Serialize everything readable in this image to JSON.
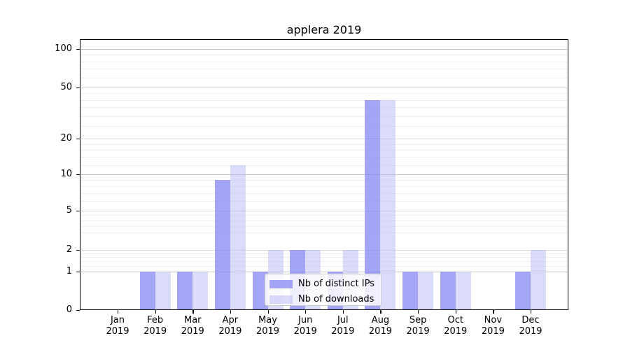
{
  "chart_data": {
    "type": "bar",
    "title": "applera 2019",
    "categories": [
      "Jan 2019",
      "Feb 2019",
      "Mar 2019",
      "Apr 2019",
      "May 2019",
      "Jun 2019",
      "Jul 2019",
      "Aug 2019",
      "Sep 2019",
      "Oct 2019",
      "Nov 2019",
      "Dec 2019"
    ],
    "series": [
      {
        "name": "Nb of distinct IPs",
        "color": "#a8a8f6",
        "fill_rgba": "rgba(132,132,243,0.73)",
        "values": [
          0,
          1,
          1,
          9,
          1,
          2,
          1,
          40,
          1,
          1,
          0,
          1
        ]
      },
      {
        "name": "Nb of downloads",
        "color": "#dcdcfa",
        "fill_rgba": "rgba(186,186,246,0.52)",
        "values": [
          0,
          1,
          1,
          12,
          2,
          2,
          2,
          40,
          1,
          1,
          0,
          2
        ]
      }
    ],
    "xlabel": "",
    "ylabel": "",
    "yaxis": {
      "scale": "log-like above 1 with linear 0-1 segment",
      "tick_labels": [
        "100",
        "50",
        "20",
        "10",
        "5",
        "2",
        "1",
        "0"
      ],
      "tick_values": [
        100,
        50,
        20,
        10,
        5,
        2,
        1,
        0
      ],
      "ylim": [
        0,
        110
      ]
    },
    "grid": "horizontal major and minor gridlines",
    "legend": {
      "position": "inside lower center",
      "entries": [
        "Nb of distinct IPs",
        "Nb of downloads"
      ]
    }
  },
  "colors": {
    "background": "#ffffff",
    "axis": "#000000",
    "grid_major_decade": "#c6c6c6",
    "grid_major_other": "#dbdbdb",
    "grid_minor": "#efefef",
    "legend_border": "#cccccc"
  }
}
